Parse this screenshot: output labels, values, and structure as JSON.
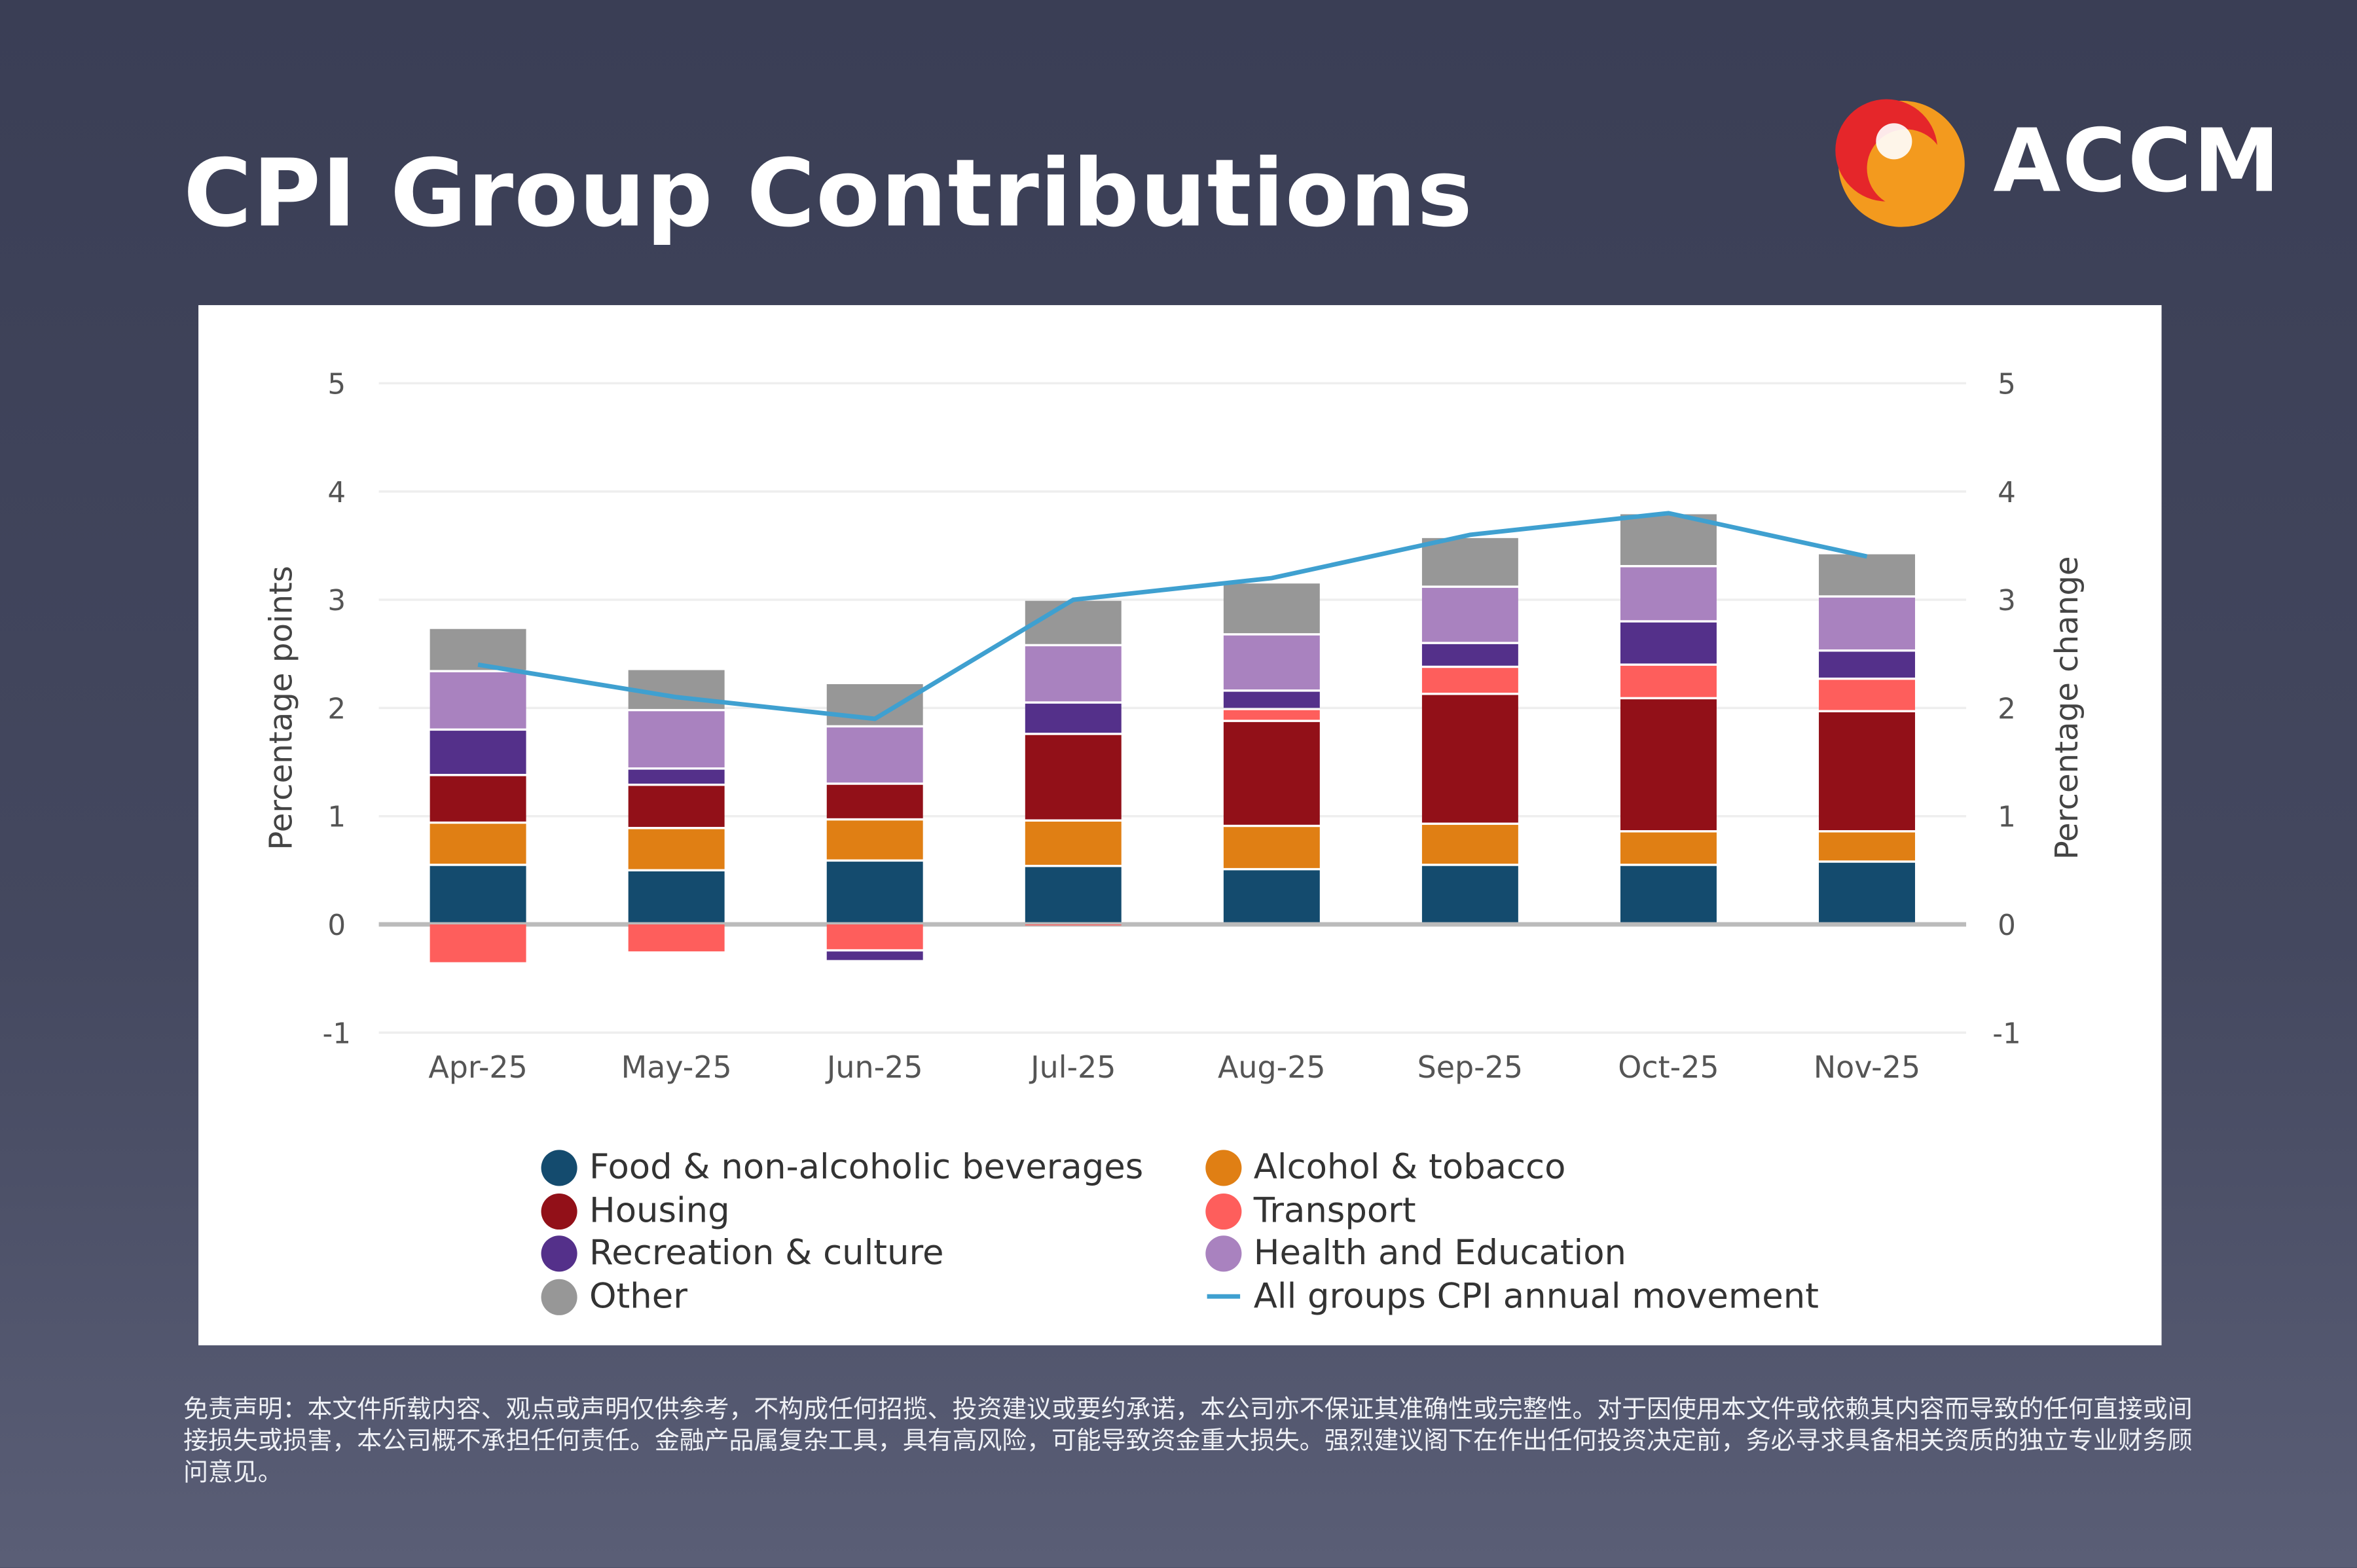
{
  "header": {
    "title": "CPI Group Contributions",
    "brand": "ACCM"
  },
  "disclaimer": "免责声明：本文件所载内容、观点或声明仅供参考，不构成任何招揽、投资建议或要约承诺，本公司亦不保证其准确性或完整性。对于因使用本文件或依赖其内容而导致的任何直接或间接损失或损害，本公司概不承担任何责任。金融产品属复杂工具，具有高风险，可能导致资金重大损失。强烈建议阁下在作出任何投资决定前，务必寻求具备相关资质的独立专业财务顾问意见。",
  "chart_data": {
    "type": "bar",
    "stacked": true,
    "title": "CPI Group Contributions",
    "ylabel": "Percentage points",
    "y2label": "Percentage change",
    "ylim": [
      -1,
      5
    ],
    "yticks": [
      "-1",
      "0",
      "1",
      "2",
      "3",
      "4",
      "5"
    ],
    "grid": true,
    "legend_position": "bottom",
    "categories": [
      "Apr-25",
      "May-25",
      "Jun-25",
      "Jul-25",
      "Aug-25",
      "Sep-25",
      "Oct-25",
      "Nov-25"
    ],
    "series": [
      {
        "name": "Food & non-alcoholic beverages",
        "color": "#144b6e",
        "values": [
          0.54,
          0.49,
          0.58,
          0.53,
          0.5,
          0.54,
          0.54,
          0.57
        ]
      },
      {
        "name": "Alcohol & tobacco",
        "color": "#e07f14",
        "values": [
          0.39,
          0.39,
          0.38,
          0.42,
          0.4,
          0.38,
          0.31,
          0.28
        ]
      },
      {
        "name": "Housing",
        "color": "#921018",
        "values": [
          0.44,
          0.4,
          0.33,
          0.8,
          0.97,
          1.2,
          1.23,
          1.11
        ]
      },
      {
        "name": "Transport",
        "color": "#fe5e5c",
        "values": [
          -0.37,
          -0.27,
          -0.25,
          -0.03,
          0.11,
          0.25,
          0.31,
          0.3
        ]
      },
      {
        "name": "Recreation & culture",
        "color": "#54308a",
        "values": [
          0.42,
          0.15,
          -0.1,
          0.29,
          0.17,
          0.22,
          0.4,
          0.26
        ]
      },
      {
        "name": "Health and Education",
        "color": "#a982bf",
        "values": [
          0.54,
          0.54,
          0.53,
          0.53,
          0.52,
          0.52,
          0.51,
          0.5
        ]
      },
      {
        "name": "Other",
        "color": "#979797",
        "values": [
          0.4,
          0.38,
          0.4,
          0.42,
          0.48,
          0.46,
          0.49,
          0.4
        ]
      }
    ],
    "line": {
      "name": "All groups CPI annual movement",
      "color": "#3fa0d0",
      "values": [
        2.4,
        2.1,
        1.9,
        3.0,
        3.2,
        3.6,
        3.8,
        3.4
      ]
    }
  },
  "legend": {
    "left": [
      {
        "label": "Food & non-alcoholic beverages",
        "color": "#144b6e"
      },
      {
        "label": "Housing",
        "color": "#921018"
      },
      {
        "label": "Recreation & culture",
        "color": "#54308a"
      },
      {
        "label": "Other",
        "color": "#979797"
      }
    ],
    "right": [
      {
        "label": "Alcohol & tobacco",
        "color": "#e07f14"
      },
      {
        "label": "Transport",
        "color": "#fe5e5c"
      },
      {
        "label": "Health and Education",
        "color": "#a982bf"
      },
      {
        "label": "All groups CPI annual movement",
        "color": "#3fa0d0"
      }
    ]
  }
}
